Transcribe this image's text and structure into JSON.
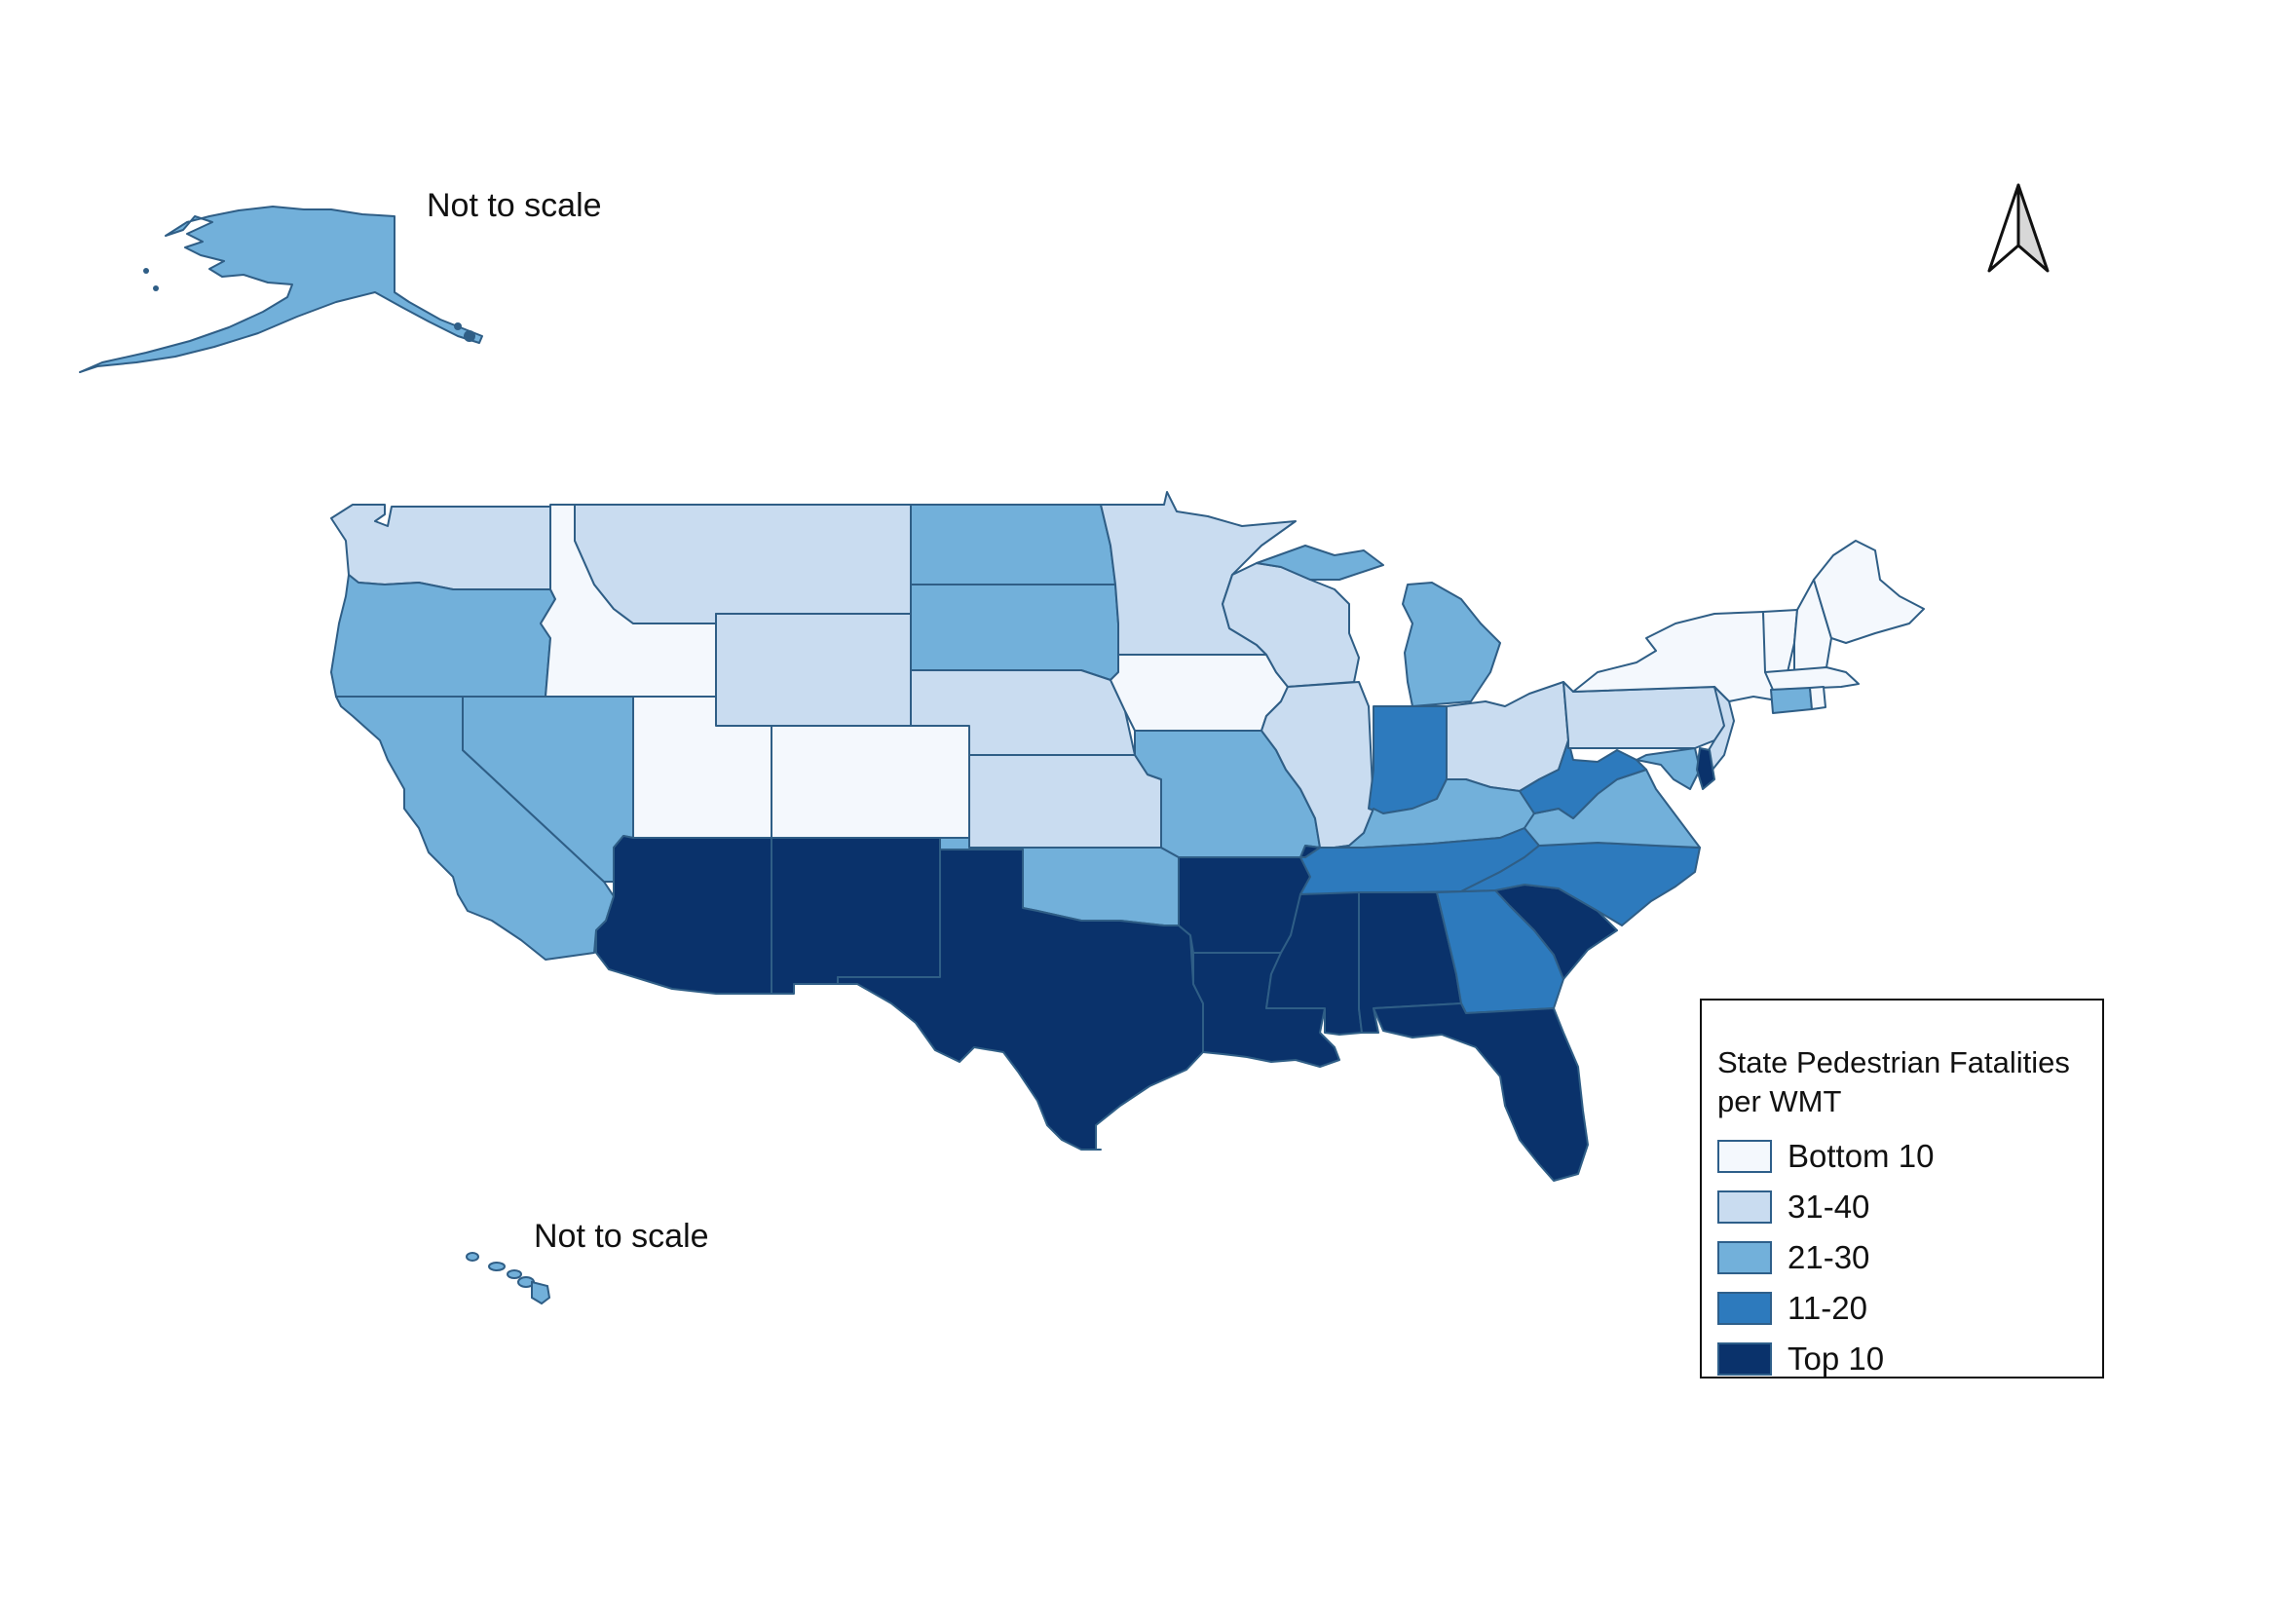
{
  "notes": {
    "alaska": "Not to scale",
    "hawaii": "Not to scale"
  },
  "colors": {
    "bottom10": "#f4f8fd",
    "r31_40": "#c9dcf0",
    "r21_30": "#72b0da",
    "r11_20": "#2d7abd",
    "top10": "#0a326b",
    "outline": "#2f5e86"
  },
  "legend": {
    "title": "State Pedestrian Fatalities per WMT",
    "items": [
      {
        "label": "Bottom 10",
        "color": "#f4f8fd"
      },
      {
        "label": "31-40",
        "color": "#c9dcf0"
      },
      {
        "label": "21-30",
        "color": "#72b0da"
      },
      {
        "label": "11-20",
        "color": "#2d7abd"
      },
      {
        "label": "Top 10",
        "color": "#0a326b"
      }
    ]
  },
  "north_arrow": "north-arrow-icon"
}
